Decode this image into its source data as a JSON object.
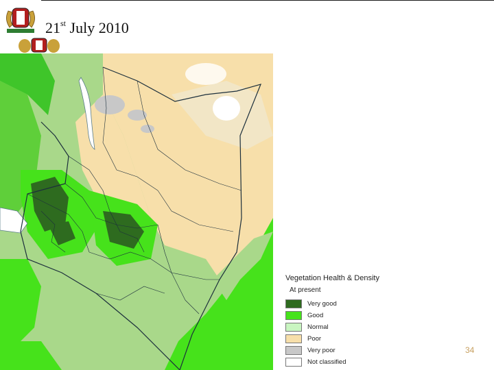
{
  "slide": {
    "date_day": "21",
    "date_suffix": "st",
    "date_rest": "July 2010",
    "page_number": "34"
  },
  "legend": {
    "title": "Vegetation Health & Density",
    "subtitle": "At present",
    "items": [
      {
        "label": "Very good",
        "color": "#2e6b1f"
      },
      {
        "label": "Good",
        "color": "#46e21b"
      },
      {
        "label": "Normal",
        "color": "#c9f5c1"
      },
      {
        "label": "Poor",
        "color": "#f7dfaa"
      },
      {
        "label": "Very poor",
        "color": "#c8c8c8"
      },
      {
        "label": "Not classified",
        "color": "#ffffff"
      }
    ]
  },
  "colors": {
    "very_good": "#2e6b1f",
    "good": "#46e21b",
    "normal": "#c9f5c1",
    "moderate": "#a9d88a",
    "poor": "#f7dfaa",
    "very_poor": "#c8c8c8",
    "accent_page_number": "#c8a060"
  }
}
